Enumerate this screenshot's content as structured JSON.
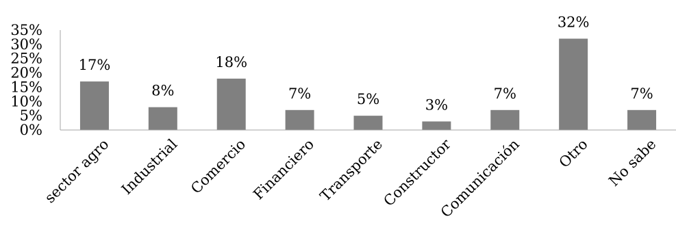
{
  "chart_data": {
    "type": "bar",
    "categories": [
      "sector agro",
      "Industrial",
      "Comercio",
      "Financiero",
      "Transporte",
      "Constructor",
      "Comunicación",
      "Otro",
      "No sabe"
    ],
    "values": [
      17,
      8,
      18,
      7,
      5,
      3,
      7,
      32,
      7
    ],
    "data_labels": [
      "17%",
      "8%",
      "18%",
      "7%",
      "5%",
      "3%",
      "7%",
      "32%",
      "7%"
    ],
    "y_ticks": [
      0,
      5,
      10,
      15,
      20,
      25,
      30,
      35
    ],
    "y_tick_labels": [
      "0%",
      "5%",
      "10%",
      "15%",
      "20%",
      "25%",
      "30%",
      "35%"
    ],
    "ylim": [
      0,
      35
    ],
    "title": "",
    "xlabel": "",
    "ylabel": "",
    "grid": false,
    "legend": "none",
    "bar_color": "#808080",
    "axis_color": "#a6a6a6"
  }
}
